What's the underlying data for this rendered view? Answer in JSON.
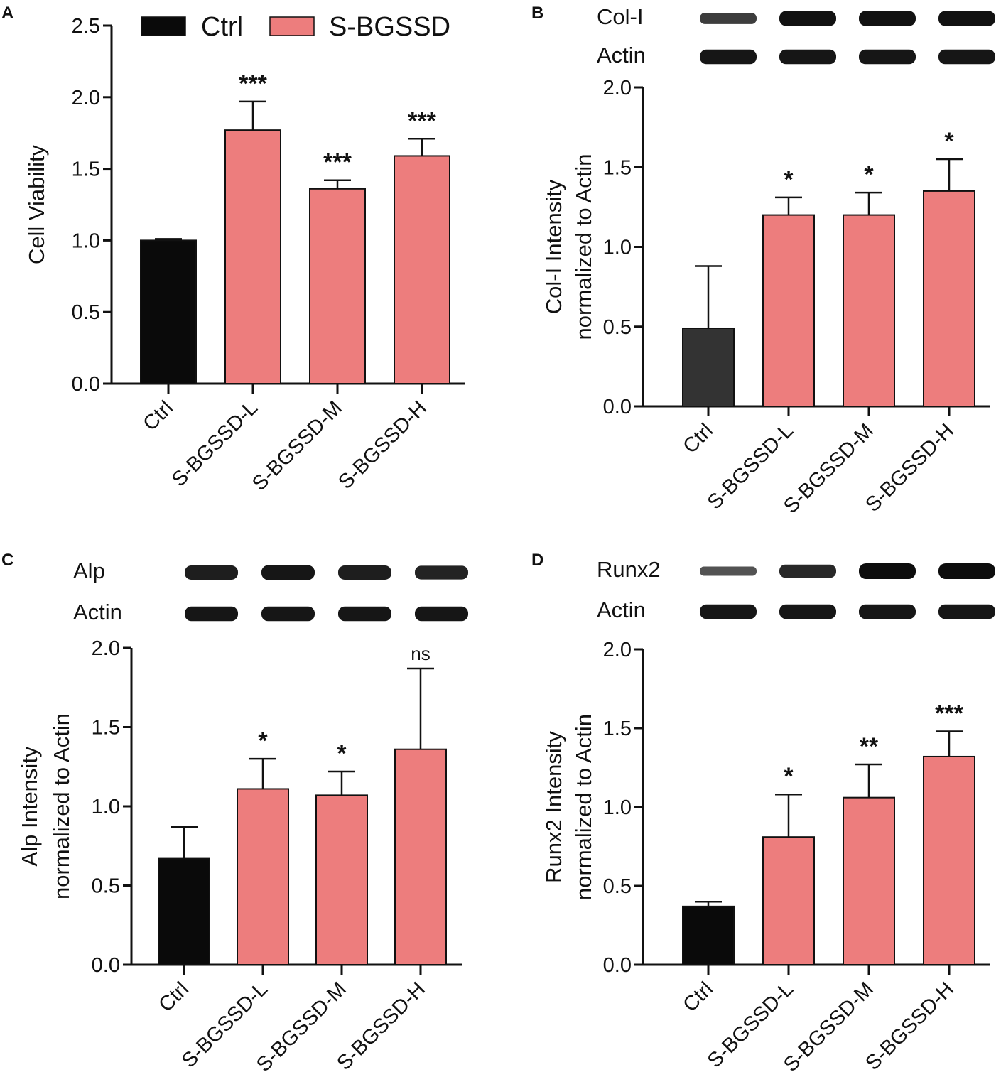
{
  "legend": {
    "items": [
      {
        "label": "Ctrl",
        "color": "#0a0a0a"
      },
      {
        "label": "S-BGSSD",
        "color": "#ed7d7d"
      }
    ]
  },
  "chart_data": [
    {
      "panel": "A",
      "type": "bar",
      "categories": [
        "Ctrl",
        "S-BGSSD-L",
        "S-BGSSD-M",
        "S-BGSSD-H"
      ],
      "values": [
        1.0,
        1.77,
        1.36,
        1.59
      ],
      "errors": [
        0.01,
        0.2,
        0.06,
        0.12
      ],
      "significance": [
        "",
        "***",
        "***",
        "***"
      ],
      "colors": [
        "#0a0a0a",
        "#ed7d7d",
        "#ed7d7d",
        "#ed7d7d"
      ],
      "ylabel_lines": [
        "Cell Viability"
      ],
      "ylim": [
        0,
        2.5
      ],
      "yticks": [
        "0.0",
        "0.5",
        "1.0",
        "1.5",
        "2.0",
        "2.5"
      ],
      "blots": []
    },
    {
      "panel": "B",
      "type": "bar",
      "categories": [
        "Ctrl",
        "S-BGSSD-L",
        "S-BGSSD-M",
        "S-BGSSD-H"
      ],
      "values": [
        0.49,
        1.2,
        1.2,
        1.35
      ],
      "errors": [
        0.39,
        0.11,
        0.14,
        0.2
      ],
      "significance": [
        "",
        "*",
        "*",
        "*"
      ],
      "colors": [
        "#333333",
        "#ed7d7d",
        "#ed7d7d",
        "#ed7d7d"
      ],
      "ylabel_lines": [
        "Col-I Intensity",
        "normalized to Actin"
      ],
      "ylim": [
        0,
        2.0
      ],
      "yticks": [
        "0.0",
        "0.5",
        "1.0",
        "1.5",
        "2.0"
      ],
      "blots": [
        {
          "label": "Col-I",
          "intensity": [
            0.55,
            0.95,
            0.95,
            0.95
          ]
        },
        {
          "label": "Actin",
          "intensity": [
            0.9,
            0.9,
            0.9,
            0.9
          ]
        }
      ]
    },
    {
      "panel": "C",
      "type": "bar",
      "categories": [
        "Ctrl",
        "S-BGSSD-L",
        "S-BGSSD-M",
        "S-BGSSD-H"
      ],
      "values": [
        0.67,
        1.11,
        1.07,
        1.36
      ],
      "errors": [
        0.2,
        0.19,
        0.15,
        0.51
      ],
      "significance": [
        "",
        "*",
        "*",
        "ns"
      ],
      "colors": [
        "#0a0a0a",
        "#ed7d7d",
        "#ed7d7d",
        "#ed7d7d"
      ],
      "ylabel_lines": [
        "Alp Intensity",
        "normalized to Actin"
      ],
      "ylim": [
        0,
        2.0
      ],
      "yticks": [
        "0.0",
        "0.5",
        "1.0",
        "1.5",
        "2.0"
      ],
      "blots": [
        {
          "label": "Alp",
          "intensity": [
            0.85,
            0.9,
            0.85,
            0.8
          ]
        },
        {
          "label": "Actin",
          "intensity": [
            0.9,
            0.9,
            0.9,
            0.9
          ]
        }
      ]
    },
    {
      "panel": "D",
      "type": "bar",
      "categories": [
        "Ctrl",
        "S-BGSSD-L",
        "S-BGSSD-M",
        "S-BGSSD-H"
      ],
      "values": [
        0.37,
        0.81,
        1.06,
        1.32
      ],
      "errors": [
        0.03,
        0.27,
        0.21,
        0.16
      ],
      "significance": [
        "",
        "*",
        "**",
        "***"
      ],
      "colors": [
        "#0a0a0a",
        "#ed7d7d",
        "#ed7d7d",
        "#ed7d7d"
      ],
      "ylabel_lines": [
        "Runx2 Intensity",
        "normalized to Actin"
      ],
      "ylim": [
        0,
        2.0
      ],
      "yticks": [
        "0.0",
        "0.5",
        "1.0",
        "1.5",
        "2.0"
      ],
      "blots": [
        {
          "label": "Runx2",
          "intensity": [
            0.35,
            0.75,
            1.0,
            1.0
          ]
        },
        {
          "label": "Actin",
          "intensity": [
            0.9,
            0.9,
            0.9,
            0.9
          ]
        }
      ]
    }
  ]
}
